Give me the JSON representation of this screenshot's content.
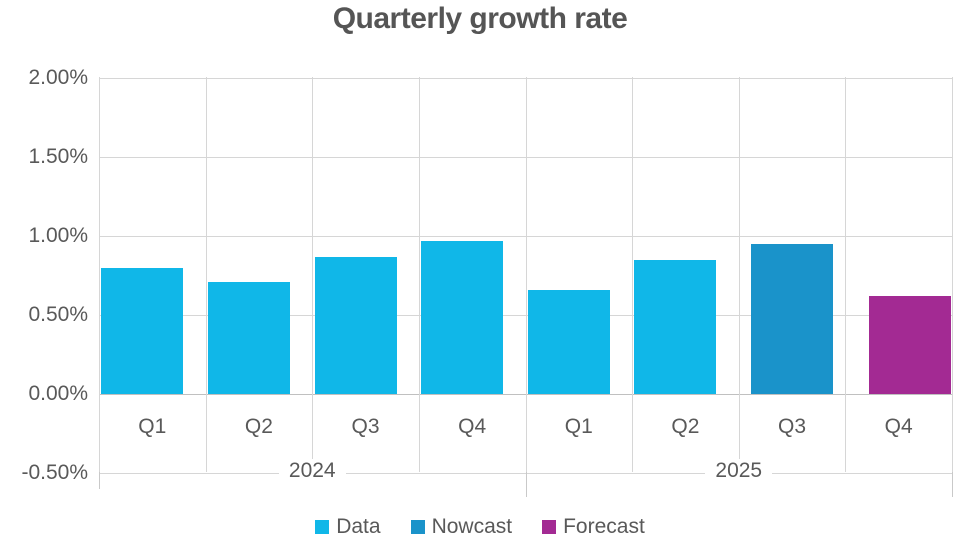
{
  "title": "Quarterly growth rate",
  "colors": {
    "data": "#10b7e8",
    "nowcast": "#1a93ca",
    "forecast": "#a32a93",
    "gridline": "#d6d6d6",
    "axis_text": "#595959",
    "title_text": "#555555"
  },
  "chart_data": {
    "type": "bar",
    "title": "Quarterly growth rate",
    "categories": [
      "Q1",
      "Q2",
      "Q3",
      "Q4",
      "Q1",
      "Q2",
      "Q3",
      "Q4"
    ],
    "category_groups": [
      {
        "label": "2024",
        "start": 0,
        "end": 3
      },
      {
        "label": "2025",
        "start": 4,
        "end": 7
      }
    ],
    "series": [
      {
        "name": "Data",
        "color": "#10b7e8",
        "values": [
          0.8,
          0.71,
          0.87,
          0.97,
          0.66,
          0.85,
          null,
          null
        ]
      },
      {
        "name": "Nowcast",
        "color": "#1a93ca",
        "values": [
          null,
          null,
          null,
          null,
          null,
          null,
          0.95,
          null
        ]
      },
      {
        "name": "Forecast",
        "color": "#a32a93",
        "values": [
          null,
          null,
          null,
          null,
          null,
          null,
          null,
          0.62
        ]
      }
    ],
    "unit": "%",
    "ylim": [
      -0.5,
      2.0
    ],
    "yticks": [
      2.0,
      1.5,
      1.0,
      0.5,
      0.0,
      -0.5
    ],
    "ytick_labels": [
      "2.00%",
      "1.50%",
      "1.00%",
      "0.50%",
      "0.00%",
      "-0.50%"
    ],
    "grid": true,
    "legend": [
      "Data",
      "Nowcast",
      "Forecast"
    ],
    "legend_position": "bottom"
  }
}
